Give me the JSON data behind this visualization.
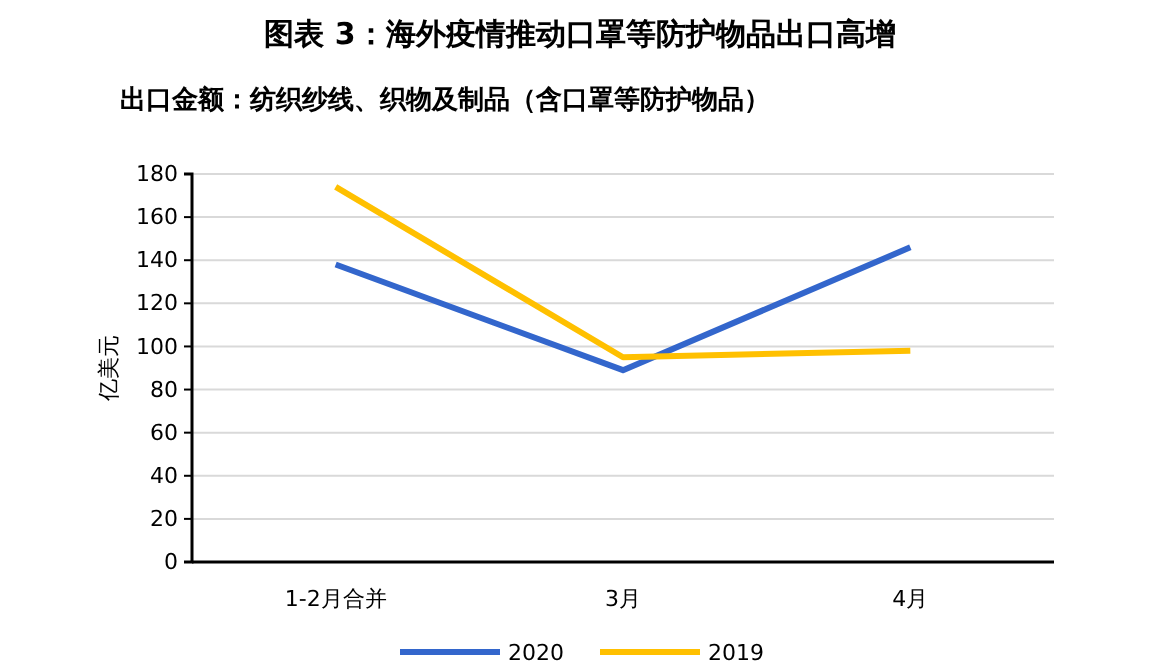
{
  "chart_data": {
    "type": "line",
    "title": "图表 3：海外疫情推动口罩等防护物品出口高增",
    "subtitle": "出口金额：纺织纱线、织物及制品（含口罩等防护物品）",
    "ylabel": "亿美元",
    "categories": [
      "1-2月合并",
      "3月",
      "4月"
    ],
    "series": [
      {
        "name": "2020",
        "color": "#3366cc",
        "values": [
          138,
          89,
          146
        ]
      },
      {
        "name": "2019",
        "color": "#ffc000",
        "values": [
          174,
          95,
          98
        ]
      }
    ],
    "ylim": [
      0,
      180
    ],
    "yticks": [
      0,
      20,
      40,
      60,
      80,
      100,
      120,
      140,
      160,
      180
    ],
    "grid": "y",
    "legend": "bottom"
  }
}
